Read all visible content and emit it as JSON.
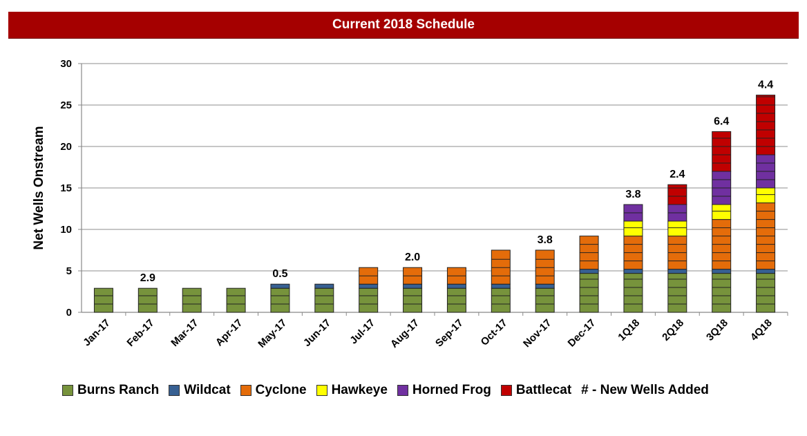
{
  "title": "Current 2018 Schedule",
  "chart_data": {
    "type": "bar",
    "stacked": true,
    "title": "Current 2018 Schedule",
    "xlabel": "",
    "ylabel": "Net Wells Onstream",
    "ylim": [
      0,
      30
    ],
    "yticks": [
      0,
      5,
      10,
      15,
      20,
      25,
      30
    ],
    "grid": true,
    "categories": [
      "Jan-17",
      "Feb-17",
      "Mar-17",
      "Apr-17",
      "May-17",
      "Jun-17",
      "Jul-17",
      "Aug-17",
      "Sep-17",
      "Oct-17",
      "Nov-17",
      "Dec-17",
      "1Q18",
      "2Q18",
      "3Q18",
      "4Q18"
    ],
    "series": [
      {
        "name": "Burns Ranch",
        "color": "#77933c",
        "values": [
          2.9,
          2.9,
          2.9,
          2.9,
          2.9,
          2.9,
          2.9,
          2.9,
          2.9,
          2.9,
          2.9,
          4.7,
          4.7,
          4.7,
          4.7,
          4.7
        ]
      },
      {
        "name": "Wildcat",
        "color": "#376092",
        "values": [
          0,
          0,
          0,
          0,
          0.5,
          0.5,
          0.5,
          0.5,
          0.5,
          0.5,
          0.5,
          0.5,
          0.5,
          0.5,
          0.5,
          0.5
        ]
      },
      {
        "name": "Cyclone",
        "color": "#e46c0a",
        "values": [
          0,
          0,
          0,
          0,
          0,
          0,
          2.0,
          2.0,
          2.0,
          4.1,
          4.1,
          4.0,
          4.0,
          4.0,
          6.0,
          8.0
        ]
      },
      {
        "name": "Hawkeye",
        "color": "#ffff00",
        "values": [
          0,
          0,
          0,
          0,
          0,
          0,
          0,
          0,
          0,
          0,
          0,
          0,
          1.8,
          1.8,
          1.8,
          1.8
        ]
      },
      {
        "name": "Horned Frog",
        "color": "#7030a0",
        "values": [
          0,
          0,
          0,
          0,
          0,
          0,
          0,
          0,
          0,
          0,
          0,
          0,
          2.0,
          2.0,
          4.0,
          4.0
        ]
      },
      {
        "name": "Battlecat",
        "color": "#c00000",
        "values": [
          0,
          0,
          0,
          0,
          0,
          0,
          0,
          0,
          0,
          0,
          0,
          0,
          0,
          2.4,
          4.8,
          7.2
        ]
      }
    ],
    "data_labels": [
      "",
      "2.9",
      "",
      "",
      "0.5",
      "",
      "",
      "2.0",
      "",
      "",
      "3.8",
      "",
      "3.8",
      "2.4",
      "6.4",
      "4.4"
    ],
    "legend_position": "bottom",
    "legend_note": "# - New Wells Added"
  }
}
